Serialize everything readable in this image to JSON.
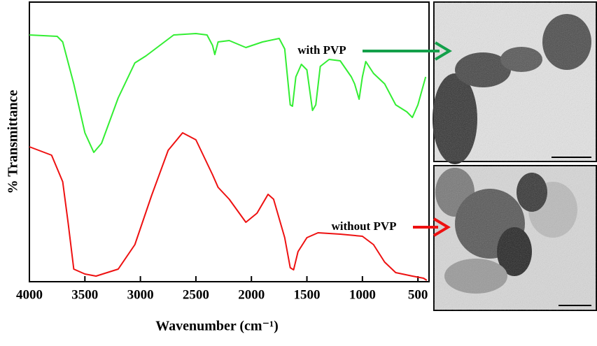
{
  "chart_data": {
    "type": "line",
    "xlabel": "Wavenumber (cm⁻¹)",
    "ylabel": "% Transmittance",
    "xlim": [
      4000,
      400
    ],
    "ylim": [
      0,
      100
    ],
    "xticks": [
      4000,
      3500,
      3000,
      2500,
      2000,
      1500,
      1000,
      500
    ],
    "x": [
      4000,
      3750,
      3700,
      3600,
      3500,
      3420,
      3350,
      3200,
      3050,
      2950,
      2800,
      2700,
      2500,
      2400,
      2350,
      2330,
      2300,
      2200,
      2050,
      1900,
      1750,
      1700,
      1650,
      1630,
      1600,
      1550,
      1500,
      1450,
      1420,
      1380,
      1300,
      1200,
      1100,
      1070,
      1030,
      1000,
      970,
      900,
      800,
      700,
      600,
      550,
      500,
      430
    ],
    "series": [
      {
        "name": "with PVP",
        "color": "#33ee33",
        "arrow_color": "#13a04a",
        "values": [
          88.25,
          87.75,
          85.75,
          70.75,
          53.25,
          46.25,
          49.5,
          65.75,
          78.25,
          80.75,
          85.25,
          88.25,
          88.75,
          88.25,
          84.5,
          81.25,
          85.75,
          86.25,
          83.75,
          85.75,
          87,
          83.25,
          63.25,
          62.75,
          73.25,
          77.75,
          75.75,
          61.25,
          63.25,
          77,
          79.5,
          79,
          73.25,
          70.75,
          65.25,
          73.25,
          78.75,
          74.5,
          70.75,
          63.25,
          60.75,
          58.75,
          63.25,
          73.25
        ]
      },
      {
        "name": "without PVP",
        "color": "#ee1111",
        "arrow_color": "#ee1111",
        "x": [
          4000,
          3800,
          3700,
          3650,
          3600,
          3500,
          3400,
          3200,
          3050,
          2900,
          2750,
          2620,
          2500,
          2350,
          2300,
          2200,
          2050,
          1950,
          1850,
          1800,
          1700,
          1650,
          1620,
          1580,
          1500,
          1400,
          1200,
          1000,
          900,
          800,
          700,
          550,
          450,
          420
        ],
        "values": [
          48.25,
          45.25,
          35.75,
          20.75,
          4.5,
          2.75,
          2,
          4.5,
          13.25,
          30.75,
          47,
          53.25,
          50.75,
          38.25,
          33.75,
          29.5,
          21.25,
          24.5,
          31.25,
          29.5,
          15.75,
          5,
          4.25,
          10.75,
          15.75,
          17.5,
          17,
          16.25,
          13.25,
          7,
          3.25,
          2,
          1.25,
          0.5
        ]
      }
    ]
  }
}
